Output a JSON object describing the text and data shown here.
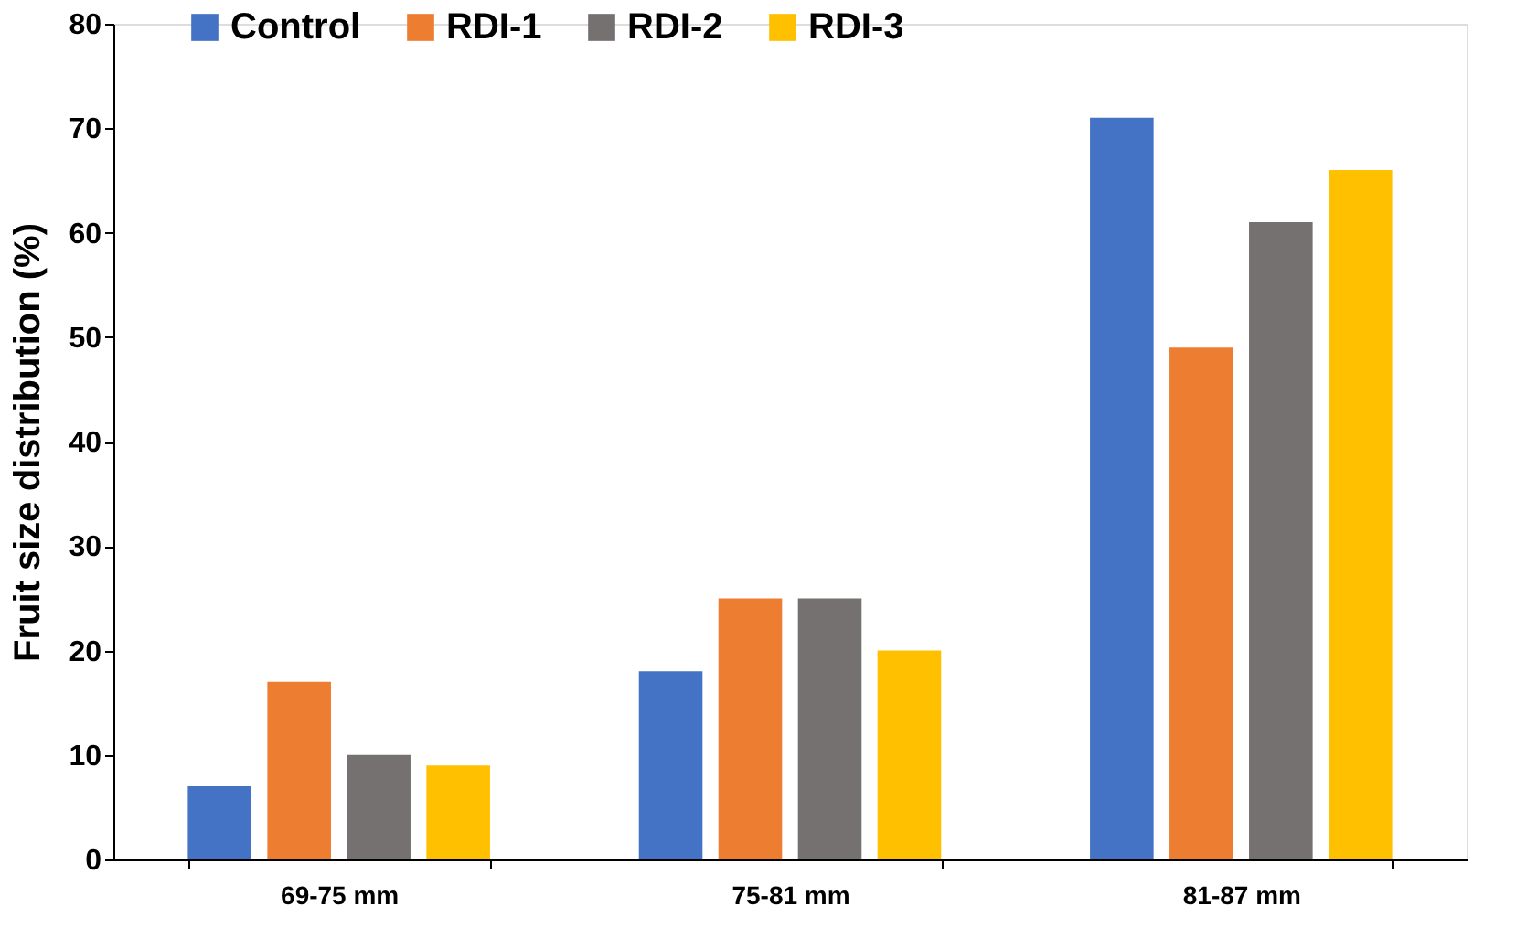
{
  "chart_data": {
    "type": "bar",
    "ylabel": "Fruit size distribution (%)",
    "categories": [
      "69-75 mm",
      "75-81 mm",
      "81-87 mm"
    ],
    "series": [
      {
        "name": "Control",
        "color": "#4472c4",
        "values": [
          7,
          18,
          71
        ]
      },
      {
        "name": "RDI-1",
        "color": "#ed7d31",
        "values": [
          17,
          25,
          49
        ]
      },
      {
        "name": "RDI-2",
        "color": "#767171",
        "values": [
          10,
          25,
          61
        ]
      },
      {
        "name": "RDI-3",
        "color": "#ffc000",
        "values": [
          9,
          20,
          66
        ]
      }
    ],
    "ylim": [
      0,
      80
    ],
    "yticks": [
      0,
      10,
      20,
      30,
      40,
      50,
      60,
      70,
      80
    ],
    "grid": false,
    "legend": "top left"
  }
}
